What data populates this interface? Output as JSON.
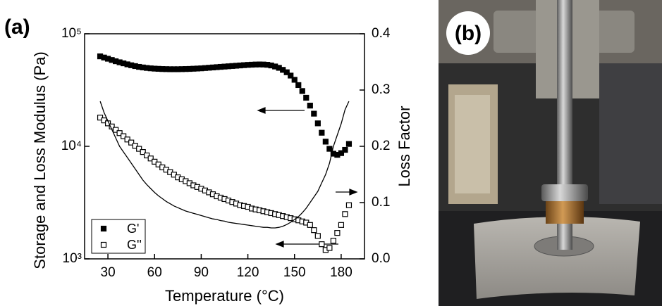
{
  "panel_labels": [
    "(a)",
    "(b)"
  ],
  "chart_data": {
    "type": "scatter",
    "x_label": "Temperature (°C)",
    "y_label": "Storage and Loss Modulus (Pa)",
    "y2_label": "Loss Factor",
    "log_y": true,
    "legend": "lower left",
    "xlim": [
      15,
      195
    ],
    "xticks": [
      30,
      60,
      90,
      120,
      150,
      180
    ],
    "ylim": [
      1000,
      100000
    ],
    "yticks": [
      {
        "value": 1000,
        "label": "10³"
      },
      {
        "value": 10000,
        "label": "10⁴"
      },
      {
        "value": 100000,
        "label": "10⁵"
      }
    ],
    "y2lim": [
      0,
      0.4
    ],
    "y2ticks": [
      {
        "value": 0,
        "label": "0.0"
      },
      0.1,
      0.2,
      0.3,
      0.4
    ],
    "x": [
      25,
      27.5,
      30,
      32.5,
      35,
      37.5,
      40,
      42.5,
      45,
      47.5,
      50,
      52.5,
      55,
      57.5,
      60,
      62.5,
      65,
      67.5,
      70,
      72.5,
      75,
      77.5,
      80,
      82.5,
      85,
      87.5,
      90,
      92.5,
      95,
      97.5,
      100,
      102.5,
      105,
      107.5,
      110,
      112.5,
      115,
      117.5,
      120,
      122.5,
      125,
      127.5,
      130,
      132.5,
      135,
      137.5,
      140,
      142.5,
      145,
      147.5,
      150,
      152.5,
      155,
      157.5,
      160,
      162.5,
      165,
      167.5,
      170,
      172.5,
      175,
      177.5,
      180,
      182.5,
      185
    ],
    "series": [
      {
        "name": "G'",
        "color": "#000000",
        "marker": "filled-square",
        "values": [
          63000,
          61500,
          60000,
          58500,
          57000,
          55800,
          54600,
          53500,
          52500,
          51600,
          50800,
          50200,
          49700,
          49300,
          49000,
          48800,
          48600,
          48500,
          48400,
          48400,
          48400,
          48500,
          48600,
          48700,
          48900,
          49100,
          49300,
          49600,
          49900,
          50200,
          50500,
          50800,
          51100,
          51400,
          51700,
          52000,
          52300,
          52600,
          52900,
          53100,
          53300,
          53400,
          53300,
          53000,
          52300,
          51200,
          49800,
          47800,
          45500,
          42500,
          39000,
          35000,
          31000,
          27000,
          23000,
          19500,
          16000,
          13200,
          11000,
          9500,
          8600,
          8400,
          8700,
          9300,
          10500
        ]
      },
      {
        "name": "G''",
        "color": "#000000",
        "marker": "open-square",
        "values": [
          18000,
          17000,
          16000,
          15000,
          14000,
          13100,
          12300,
          11500,
          10800,
          10100,
          9500,
          8900,
          8300,
          7800,
          7300,
          6900,
          6500,
          6200,
          5900,
          5600,
          5300,
          5100,
          4900,
          4700,
          4500,
          4350,
          4200,
          4050,
          3900,
          3750,
          3600,
          3500,
          3400,
          3300,
          3200,
          3100,
          3000,
          2950,
          2900,
          2800,
          2750,
          2700,
          2650,
          2600,
          2550,
          2500,
          2450,
          2400,
          2350,
          2300,
          2250,
          2200,
          2150,
          2100,
          2000,
          1800,
          1600,
          1350,
          1200,
          1250,
          1450,
          1700,
          2000,
          2500,
          3000
        ]
      },
      {
        "name": "Loss Factor",
        "color": "#000000",
        "marker": "line",
        "axis": "y2",
        "in_legend": false,
        "values": [
          0.28,
          0.26,
          0.245,
          0.23,
          0.215,
          0.2,
          0.19,
          0.18,
          0.17,
          0.16,
          0.15,
          0.14,
          0.132,
          0.125,
          0.118,
          0.112,
          0.107,
          0.102,
          0.098,
          0.094,
          0.091,
          0.088,
          0.085,
          0.083,
          0.081,
          0.079,
          0.077,
          0.075,
          0.073,
          0.071,
          0.07,
          0.068,
          0.067,
          0.065,
          0.064,
          0.063,
          0.062,
          0.061,
          0.06,
          0.059,
          0.058,
          0.057,
          0.056,
          0.056,
          0.055,
          0.055,
          0.056,
          0.058,
          0.061,
          0.065,
          0.07,
          0.075,
          0.082,
          0.09,
          0.1,
          0.11,
          0.12,
          0.135,
          0.15,
          0.17,
          0.2,
          0.22,
          0.24,
          0.265,
          0.28
        ]
      }
    ]
  }
}
